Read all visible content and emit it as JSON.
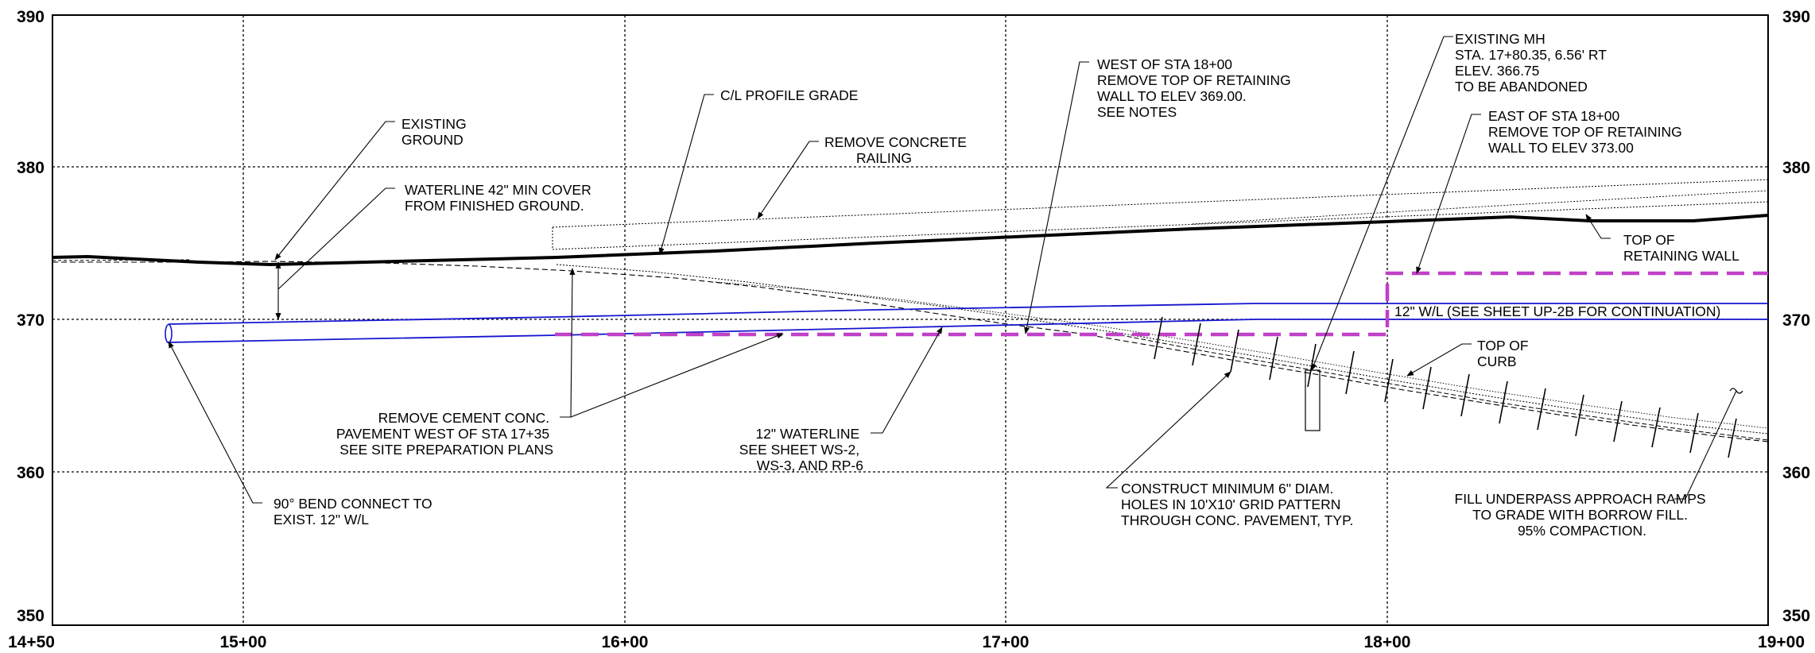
{
  "axes": {
    "y_labels": [
      "390",
      "380",
      "370",
      "360",
      "350"
    ],
    "x_labels": [
      "14+50",
      "15+00",
      "16+00",
      "17+00",
      "18+00",
      "19+00"
    ]
  },
  "colors": {
    "waterline": "#1515d0",
    "retaining_wall_cut": "#c040c8",
    "lines": "#000000"
  },
  "notes": {
    "existing_ground": [
      "EXISTING",
      "GROUND"
    ],
    "waterline_cover": [
      "WATERLINE  42\" MIN  COVER",
      "FROM  FINISHED  GROUND."
    ],
    "cl_profile_grade": [
      "C/L  PROFILE  GRADE"
    ],
    "remove_railing": [
      "REMOVE  CONCRETE",
      "RAILING"
    ],
    "west_of_sta": [
      "WEST  OF  STA  18+00",
      "REMOVE  TOP  OF  RETAINING",
      "WALL  TO  ELEV  369.00.",
      "SEE  NOTES"
    ],
    "existing_mh": [
      "EXISTING  MH",
      "STA. 17+80.35, 6.56' RT",
      "ELEV. 366.75",
      "TO  BE  ABANDONED"
    ],
    "east_of_sta": [
      "EAST  OF  STA  18+00",
      "REMOVE  TOP  OF  RETAINING",
      "WALL  TO  ELEV  373.00"
    ],
    "top_of_retaining_wall": [
      "TOP  OF",
      "RETAINING  WALL"
    ],
    "wl_continuation": [
      "12\" W/L  (SEE  SHEET  UP-2B  FOR  CONTINUATION)"
    ],
    "top_of_curb": [
      "TOP  OF",
      "CURB"
    ],
    "remove_cement": [
      "REMOVE  CEMENT  CONC.",
      "PAVEMENT  WEST  OF  STA  17+35",
      "SEE  SITE  PREPARATION  PLANS"
    ],
    "waterline_12": [
      "12\"  WATERLINE",
      "SEE  SHEET  WS-2,",
      "WS-3,  AND  RP-6"
    ],
    "bend_connect": [
      "90° BEND  CONNECT  TO",
      "EXIST.  12\" W/L"
    ],
    "construct_holes": [
      "CONSTRUCT  MINIMUM  6\" DIAM.",
      "HOLES  IN  10'X10' GRID  PATTERN",
      "THROUGH  CONC. PAVEMENT,  TYP."
    ],
    "fill_underpass": [
      "FILL  UNDERPASS  APPROACH  RAMPS",
      "TO  GRADE  WITH  BORROW  FILL.",
      "95%  COMPACTION."
    ]
  }
}
